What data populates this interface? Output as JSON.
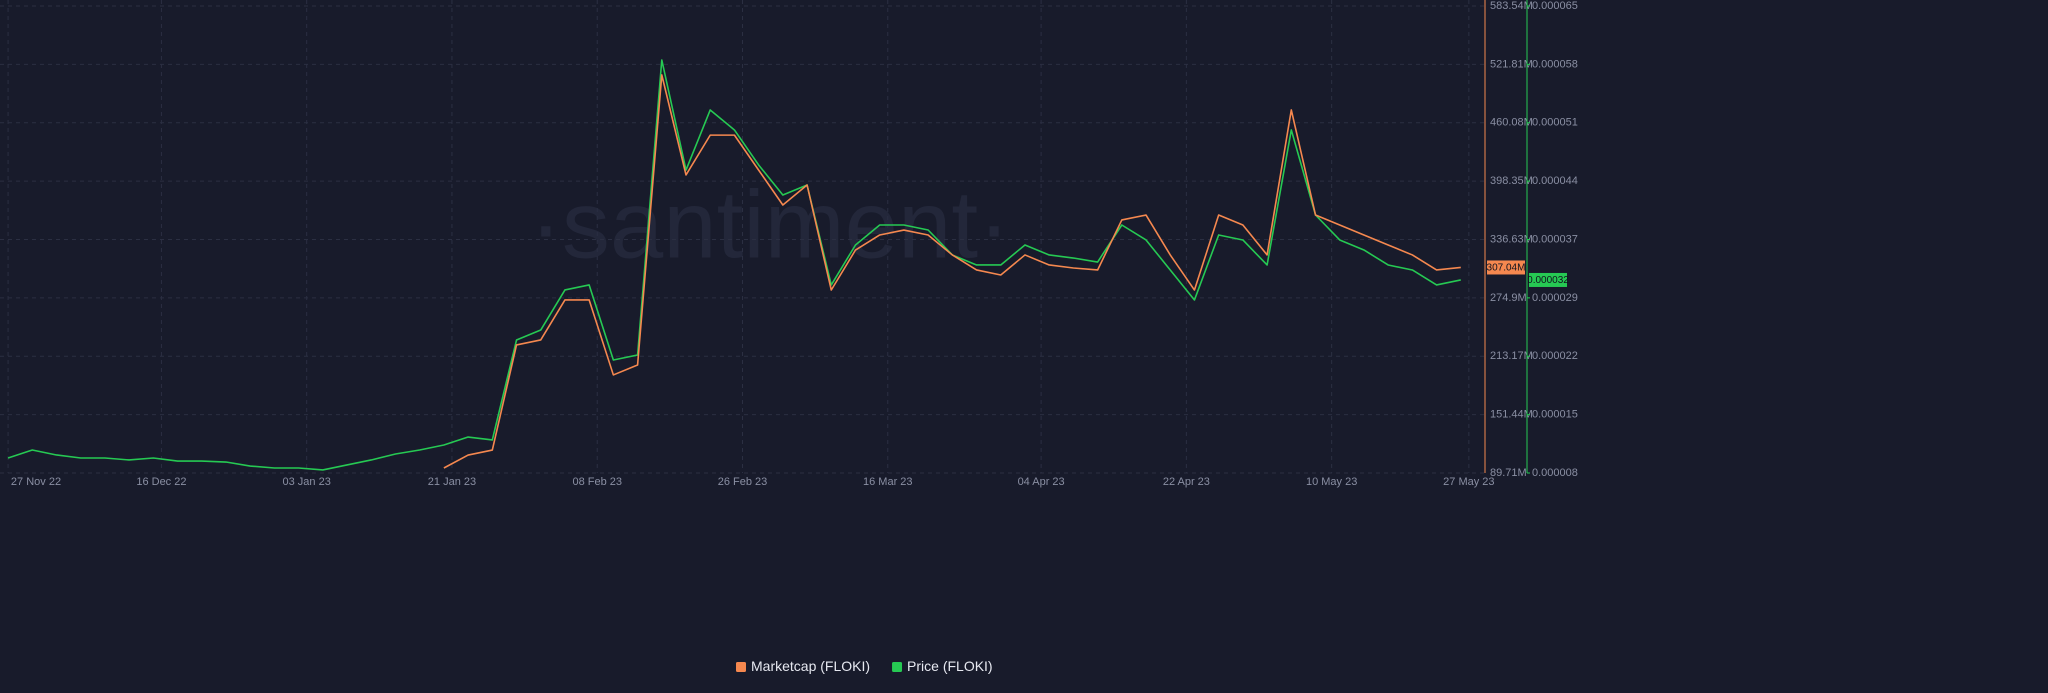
{
  "chart_data": {
    "type": "line",
    "watermark": "·santiment·",
    "x": [
      "27 Nov 22",
      "30 Nov 22",
      "03 Dec 22",
      "06 Dec 22",
      "09 Dec 22",
      "12 Dec 22",
      "15 Dec 22",
      "18 Dec 22",
      "21 Dec 22",
      "24 Dec 22",
      "27 Dec 22",
      "30 Dec 22",
      "02 Jan 23",
      "05 Jan 23",
      "08 Jan 23",
      "11 Jan 23",
      "14 Jan 23",
      "17 Jan 23",
      "20 Jan 23",
      "23 Jan 23",
      "26 Jan 23",
      "29 Jan 23",
      "01 Feb 23",
      "04 Feb 23",
      "07 Feb 23",
      "10 Feb 23",
      "13 Feb 23",
      "16 Feb 23",
      "19 Feb 23",
      "22 Feb 23",
      "25 Feb 23",
      "28 Feb 23",
      "03 Mar 23",
      "06 Mar 23",
      "09 Mar 23",
      "12 Mar 23",
      "15 Mar 23",
      "18 Mar 23",
      "21 Mar 23",
      "24 Mar 23",
      "27 Mar 23",
      "30 Mar 23",
      "02 Apr 23",
      "05 Apr 23",
      "08 Apr 23",
      "11 Apr 23",
      "14 Apr 23",
      "17 Apr 23",
      "20 Apr 23",
      "23 Apr 23",
      "26 Apr 23",
      "29 Apr 23",
      "02 May 23",
      "05 May 23",
      "08 May 23",
      "11 May 23",
      "14 May 23",
      "17 May 23",
      "20 May 23",
      "23 May 23",
      "26 May 23"
    ],
    "xlim": [
      "26 Nov 22",
      "29 May 23"
    ],
    "xticks": [
      "27 Nov 22",
      "16 Dec 22",
      "03 Jan 23",
      "21 Jan 23",
      "08 Feb 23",
      "26 Feb 23",
      "16 Mar 23",
      "04 Apr 23",
      "22 Apr 23",
      "10 May 23",
      "27 May 23"
    ],
    "ylim": [
      89.71,
      583.54
    ],
    "yticks": [
      {
        "value": 89.71,
        "label": "89.71M"
      },
      {
        "value": 151.43875,
        "label": "151.44M"
      },
      {
        "value": 213.1675,
        "label": "213.17M"
      },
      {
        "value": 274.89625,
        "label": "274.9M"
      },
      {
        "value": 336.625,
        "label": "336.63M"
      },
      {
        "value": 398.35375,
        "label": "398.35M"
      },
      {
        "value": 460.0825,
        "label": "460.08M"
      },
      {
        "value": 521.81125,
        "label": "521.81M"
      },
      {
        "value": 583.54,
        "label": "583.54M"
      }
    ],
    "y2lim": [
      8e-06,
      6.5e-05
    ],
    "y2ticks": [
      {
        "value": 8e-06,
        "label": "0.000008"
      },
      {
        "value": 1.5125e-05,
        "label": "0.000015"
      },
      {
        "value": 2.225e-05,
        "label": "0.000022"
      },
      {
        "value": 2.9375e-05,
        "label": "0.000029"
      },
      {
        "value": 3.65e-05,
        "label": "0.000037"
      },
      {
        "value": 4.3625e-05,
        "label": "0.000044"
      },
      {
        "value": 5.075e-05,
        "label": "0.000051"
      },
      {
        "value": 5.7875e-05,
        "label": "0.000058"
      },
      {
        "value": 6.5e-05,
        "label": "0.000065"
      }
    ],
    "grid": true,
    "legend": "bottom",
    "series": [
      {
        "name": "Marketcap (FLOKI)",
        "color": "#f5884f",
        "axis": "y",
        "last_label": "307.04M",
        "values": [
          null,
          null,
          null,
          null,
          null,
          null,
          null,
          null,
          null,
          null,
          null,
          null,
          null,
          null,
          null,
          null,
          null,
          null,
          95.0,
          108.7,
          114.0,
          225.1,
          230.4,
          272.7,
          272.7,
          193.4,
          203.9,
          510.6,
          404.9,
          447.0,
          447.0,
          410.0,
          373.1,
          394.3,
          283.2,
          325.5,
          341.4,
          346.6,
          341.4,
          320.3,
          304.4,
          299.1,
          320.3,
          309.7,
          306.5,
          304.4,
          357.3,
          362.5,
          320.3,
          283.2,
          362.5,
          352.0,
          320.3,
          473.6,
          362.5,
          352.0,
          341.4,
          330.8,
          320.3,
          304.4,
          307.04
        ]
      },
      {
        "name": "Price (FLOKI)",
        "color": "#26c953",
        "axis": "y2",
        "last_label": "0.000032",
        "values": [
          9.83e-06,
          1.081e-05,
          1.02e-05,
          9.83e-06,
          9.83e-06,
          9.59e-06,
          9.83e-06,
          9.46e-06,
          9.46e-06,
          9.34e-06,
          8.85e-06,
          8.61e-06,
          8.61e-06,
          8.37e-06,
          8.98e-06,
          9.59e-06,
          1.032e-05,
          1.081e-05,
          1.142e-05,
          1.239e-05,
          1.203e-05,
          2.423e-05,
          2.545e-05,
          3.034e-05,
          3.095e-05,
          2.179e-05,
          2.24e-05,
          5.841e-05,
          4.498e-05,
          5.231e-05,
          4.987e-05,
          4.56e-05,
          4.193e-05,
          4.315e-05,
          3.095e-05,
          3.583e-05,
          3.827e-05,
          3.827e-05,
          3.766e-05,
          3.461e-05,
          3.339e-05,
          3.339e-05,
          3.583e-05,
          3.461e-05,
          3.424e-05,
          3.375e-05,
          3.827e-05,
          3.644e-05,
          3.278e-05,
          2.912e-05,
          3.705e-05,
          3.644e-05,
          3.339e-05,
          4.987e-05,
          3.949e-05,
          3.644e-05,
          3.522e-05,
          3.339e-05,
          3.278e-05,
          3.095e-05,
          3.156e-05
        ]
      }
    ]
  }
}
